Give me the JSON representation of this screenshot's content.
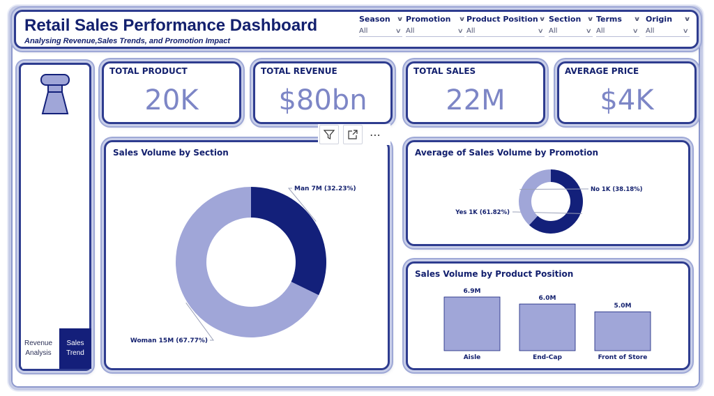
{
  "header": {
    "title": "Retail Sales Performance Dashboard",
    "subtitle": "Analysing Revenue,Sales Trends, and Promotion Impact"
  },
  "filters": [
    {
      "label": "Season",
      "value": "All"
    },
    {
      "label": "Promotion",
      "value": "All"
    },
    {
      "label": "Product Position",
      "value": "All"
    },
    {
      "label": "Section",
      "value": "All"
    },
    {
      "label": "Terms",
      "value": "All"
    },
    {
      "label": "Origin",
      "value": "All"
    }
  ],
  "nav": {
    "revenue_label": "Revenue Analysis",
    "trend_label": "Sales Trend"
  },
  "kpis": [
    {
      "title": "TOTAL PRODUCT",
      "value": "20K"
    },
    {
      "title": "TOTAL REVENUE",
      "value": "$80bn"
    },
    {
      "title": "TOTAL SALES",
      "value": "22M"
    },
    {
      "title": "AVERAGE PRICE",
      "value": "$4K"
    }
  ],
  "colors": {
    "dark": "#13207a",
    "light": "#a0a6d8",
    "border": "#2e3c8f"
  },
  "chart_data": [
    {
      "type": "pie",
      "title": "Sales Volume by Section",
      "categories": [
        "Man",
        "Woman"
      ],
      "values": [
        7,
        15
      ],
      "percent": [
        32.23,
        67.77
      ],
      "labels": [
        "Man 7M (32.23%)",
        "Woman 15M (67.77%)"
      ],
      "colors": [
        "#13207a",
        "#a0a6d8"
      ]
    },
    {
      "type": "pie",
      "title": "Average of Sales Volume by Promotion",
      "categories": [
        "Yes",
        "No"
      ],
      "values": [
        1,
        1
      ],
      "percent": [
        61.82,
        38.18
      ],
      "labels": [
        "Yes 1K (61.82%)",
        "No 1K (38.18%)"
      ],
      "colors": [
        "#13207a",
        "#a0a6d8"
      ]
    },
    {
      "type": "bar",
      "title": "Sales Volume by Product Position",
      "categories": [
        "Aisle",
        "End-Cap",
        "Front of Store"
      ],
      "values": [
        6.9,
        6.0,
        5.0
      ],
      "data_labels": [
        "6.9M",
        "6.0M",
        "5.0M"
      ],
      "color": "#a0a6d8"
    }
  ]
}
